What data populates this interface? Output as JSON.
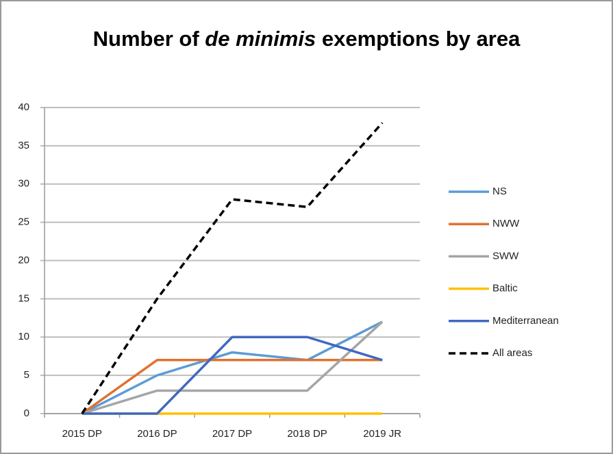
{
  "chart_data": {
    "type": "line",
    "title": [
      "Number of",
      "de minimis",
      "exemptions by area"
    ],
    "title_italic": [
      false,
      true,
      false
    ],
    "categories": [
      "2015 DP",
      "2016 DP",
      "2017 DP",
      "2018 DP",
      "2019 JR"
    ],
    "series": [
      {
        "name": "NS",
        "color": "#5b9bd5",
        "dash": false,
        "values": [
          0,
          5,
          8,
          7,
          12
        ]
      },
      {
        "name": "NWW",
        "color": "#e0722f",
        "dash": false,
        "values": [
          0,
          7,
          7,
          7,
          7
        ]
      },
      {
        "name": "SWW",
        "color": "#a5a5a5",
        "dash": false,
        "values": [
          0,
          3,
          3,
          3,
          12
        ]
      },
      {
        "name": "Baltic",
        "color": "#ffc000",
        "dash": false,
        "values": [
          0,
          0,
          0,
          0,
          0
        ]
      },
      {
        "name": "Mediterranean",
        "color": "#3f68c0",
        "dash": false,
        "values": [
          0,
          0,
          10,
          10,
          7
        ]
      },
      {
        "name": "All areas",
        "color": "#000000",
        "dash": true,
        "values": [
          0,
          15,
          28,
          27,
          38
        ]
      }
    ],
    "ylim": [
      0,
      40
    ],
    "yticks": [
      0,
      5,
      10,
      15,
      20,
      25,
      30,
      35,
      40
    ],
    "grid": true,
    "legend": "right"
  }
}
